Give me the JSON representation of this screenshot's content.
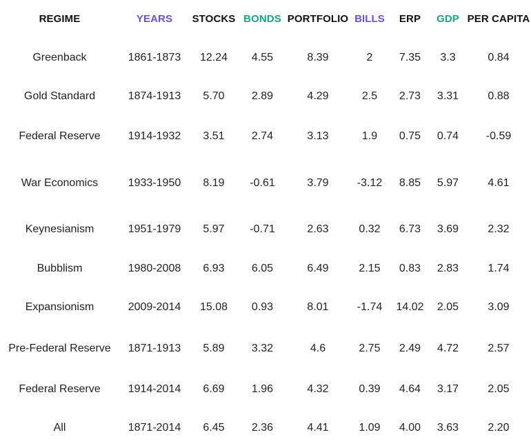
{
  "colors": {
    "years_header": "#6b4fd8",
    "bonds_header": "#19a38b",
    "bills_header": "#6b4fd8",
    "gdp_header": "#19a38b",
    "text": "#222222"
  },
  "headers": {
    "regime": "REGIME",
    "years": "YEARS",
    "stocks": "STOCKS",
    "bonds": "BONDS",
    "portfolio": "PORTFOLIO",
    "bills": "BILLS",
    "erp": "ERP",
    "gdp": "GDP",
    "per_capita": "PER CAPITA"
  },
  "rows": [
    {
      "regime": "Greenback",
      "years": "1861-1873",
      "stocks": "12.24",
      "bonds": "4.55",
      "portfolio": "8.39",
      "bills": "2",
      "erp": "7.35",
      "gdp": "3.3",
      "per_capita": "0.84"
    },
    {
      "regime": "Gold Standard",
      "years": "1874-1913",
      "stocks": "5.70",
      "bonds": "2.89",
      "portfolio": "4.29",
      "bills": "2.5",
      "erp": "2.73",
      "gdp": "3.31",
      "per_capita": "0.88"
    },
    {
      "regime": "Federal Reserve",
      "years": "1914-1932",
      "stocks": "3.51",
      "bonds": "2.74",
      "portfolio": "3.13",
      "bills": "1.9",
      "erp": "0.75",
      "gdp": "0.74",
      "per_capita": "-0.59"
    },
    {
      "regime": "War Economics",
      "years": "1933-1950",
      "stocks": "8.19",
      "bonds": "-0.61",
      "portfolio": "3.79",
      "bills": "-3.12",
      "erp": "8.85",
      "gdp": "5.97",
      "per_capita": "4.61"
    },
    {
      "regime": "Keynesianism",
      "years": "1951-1979",
      "stocks": "5.97",
      "bonds": "-0.71",
      "portfolio": "2.63",
      "bills": "0.32",
      "erp": "6.73",
      "gdp": "3.69",
      "per_capita": "2.32"
    },
    {
      "regime": "Bubblism",
      "years": "1980-2008",
      "stocks": "6.93",
      "bonds": "6.05",
      "portfolio": "6.49",
      "bills": "2.15",
      "erp": "0.83",
      "gdp": "2.83",
      "per_capita": "1.74"
    },
    {
      "regime": "Expansionism",
      "years": "2009-2014",
      "stocks": "15.08",
      "bonds": "0.93",
      "portfolio": "8.01",
      "bills": "-1.74",
      "erp": "14.02",
      "gdp": "2.05",
      "per_capita": "3.09"
    },
    {
      "regime": "Pre-Federal Reserve",
      "years": "1871-1913",
      "stocks": "5.89",
      "bonds": "3.32",
      "portfolio": "4.6",
      "bills": "2.75",
      "erp": "2.49",
      "gdp": "4.72",
      "per_capita": "2.57"
    },
    {
      "regime": "Federal Reserve",
      "years": "1914-2014",
      "stocks": "6.69",
      "bonds": "1.96",
      "portfolio": "4.32",
      "bills": "0.39",
      "erp": "4.64",
      "gdp": "3.17",
      "per_capita": "2.05"
    },
    {
      "regime": "All",
      "years": "1871-2014",
      "stocks": "6.45",
      "bonds": "2.36",
      "portfolio": "4.41",
      "bills": "1.09",
      "erp": "4.00",
      "gdp": "3.63",
      "per_capita": "2.20"
    }
  ]
}
